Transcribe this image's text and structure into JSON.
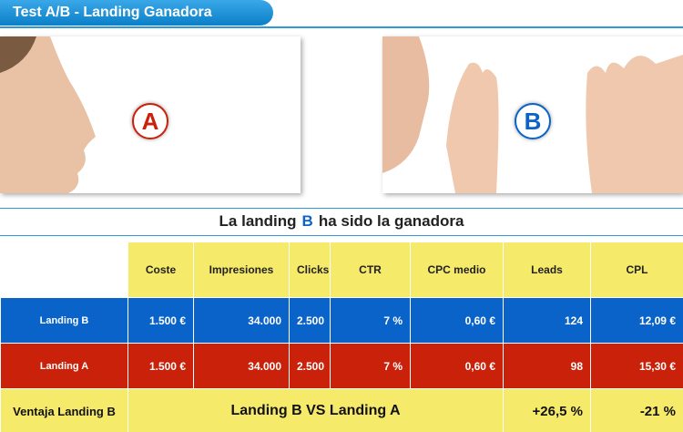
{
  "header": {
    "title": "Test A/B - Landing Ganadora"
  },
  "panels": [
    {
      "label": "A"
    },
    {
      "label": "B"
    }
  ],
  "headline": {
    "parts": [
      "La landing",
      "B",
      "ha sido la ganadora"
    ]
  },
  "table": {
    "columns": [
      "Coste",
      "Impresiones",
      "Clicks",
      "CTR",
      "CPC medio",
      "Leads",
      "CPL"
    ],
    "rows": [
      [
        "Landing B",
        "1.500 €",
        "34.000",
        "2.500",
        "7 %",
        "0,60 €",
        "124",
        "12,09 €"
      ],
      [
        "Landing A",
        "1.500 €",
        "34.000",
        "2.500",
        "7 %",
        "0,60 €",
        "98",
        "15,30 €"
      ]
    ],
    "footer": {
      "label": "Ventaja Landing B",
      "comparison": "Landing B VS Landing A",
      "leads": "+26,5 %",
      "cpl": "-21 %"
    }
  }
}
